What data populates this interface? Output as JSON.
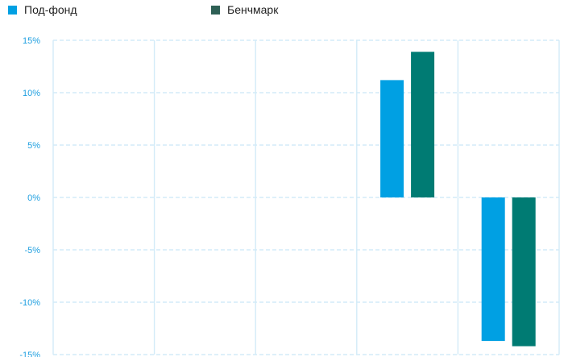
{
  "legend": {
    "items": [
      {
        "label": "Под-фонд",
        "color": "#00a0e3"
      },
      {
        "label": "Бенчмарк",
        "color": "#2e6055"
      }
    ]
  },
  "chart_data": {
    "type": "bar",
    "categories": [
      "",
      "",
      "",
      "",
      ""
    ],
    "series": [
      {
        "name": "Под-фонд",
        "color": "#00a0e3",
        "values": [
          null,
          null,
          null,
          11.2,
          -13.7
        ]
      },
      {
        "name": "Бенчмарк",
        "color": "#007b73",
        "values": [
          null,
          null,
          null,
          13.9,
          -14.2
        ]
      }
    ],
    "ylim": [
      -15,
      15
    ],
    "yticks": [
      15,
      10,
      5,
      0,
      -5,
      -10,
      -15
    ],
    "ytick_labels": [
      "15%",
      "10%",
      "5%",
      "0%",
      "-5%",
      "-10%",
      "-15%"
    ],
    "grid": true,
    "legend_position": "top-left"
  }
}
